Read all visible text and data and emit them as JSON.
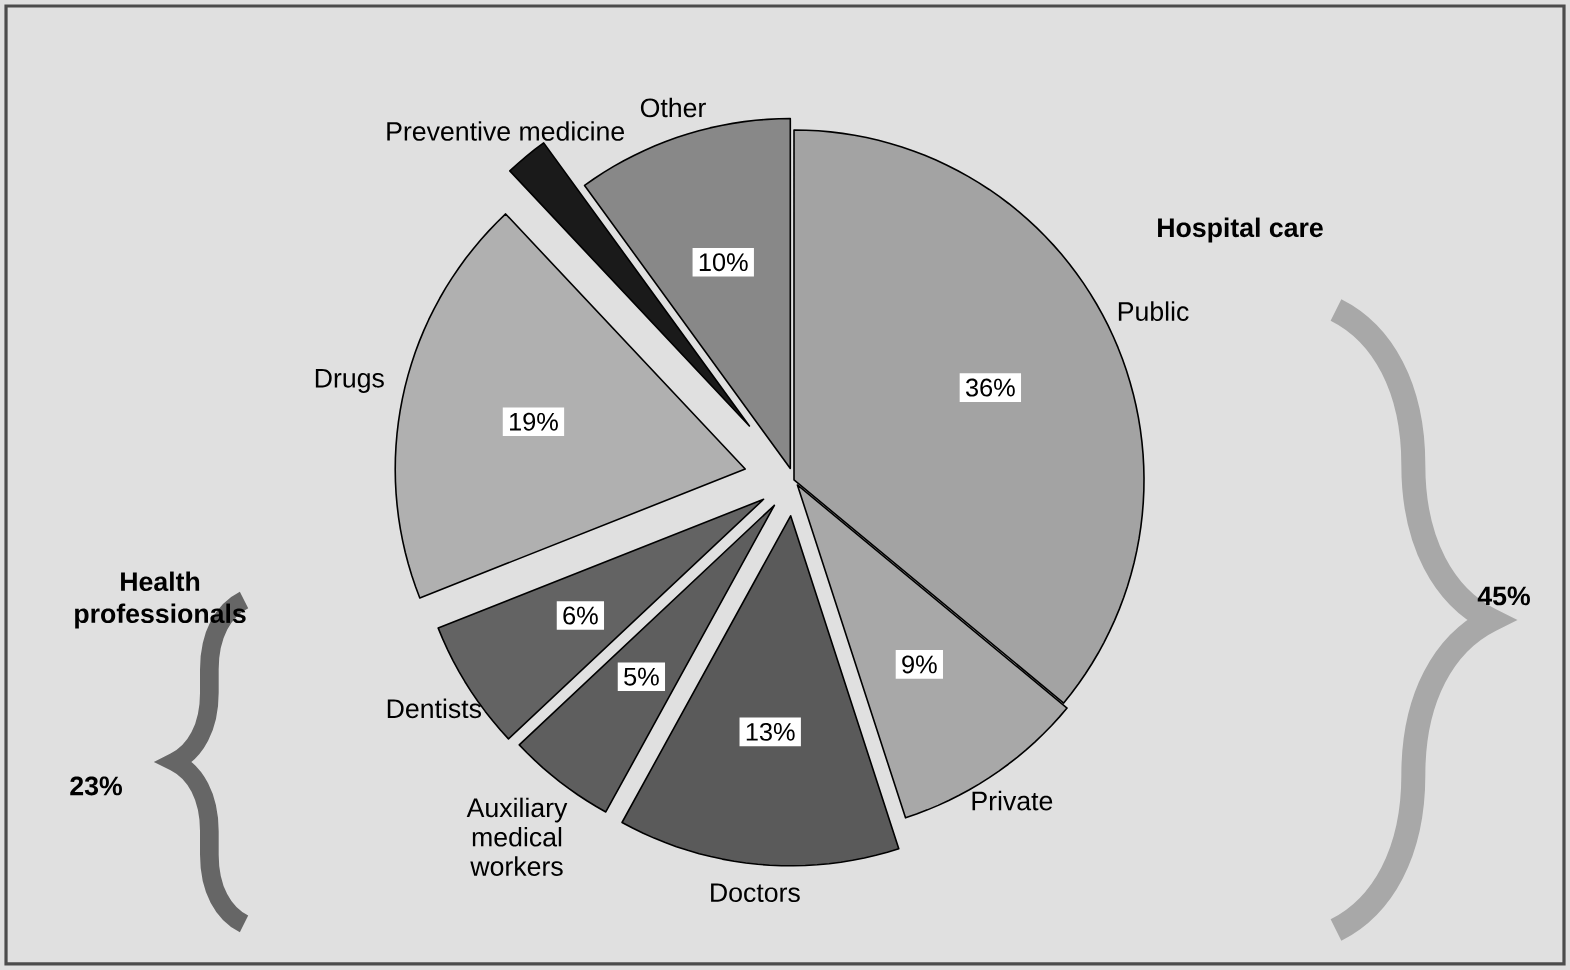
{
  "chart_data": {
    "type": "pie",
    "categories": [
      "Public",
      "Private",
      "Doctors",
      "Auxiliary medical workers",
      "Dentists",
      "Drugs",
      "Preventive medicine",
      "Other"
    ],
    "values": [
      36,
      9,
      13,
      5,
      6,
      19,
      2,
      10
    ],
    "value_labels": [
      "36%",
      "9%",
      "13%",
      "5%",
      "6%",
      "19%",
      null,
      "10%"
    ],
    "colors": [
      "#a3a3a3",
      "#a8a8a8",
      "#5a5a5a",
      "#5e5e5e",
      "#636363",
      "#b0b0b0",
      "#1a1a1a",
      "#888888"
    ],
    "annotations": [
      "Hospital care",
      "45%",
      "Health professionals",
      "23%"
    ]
  }
}
